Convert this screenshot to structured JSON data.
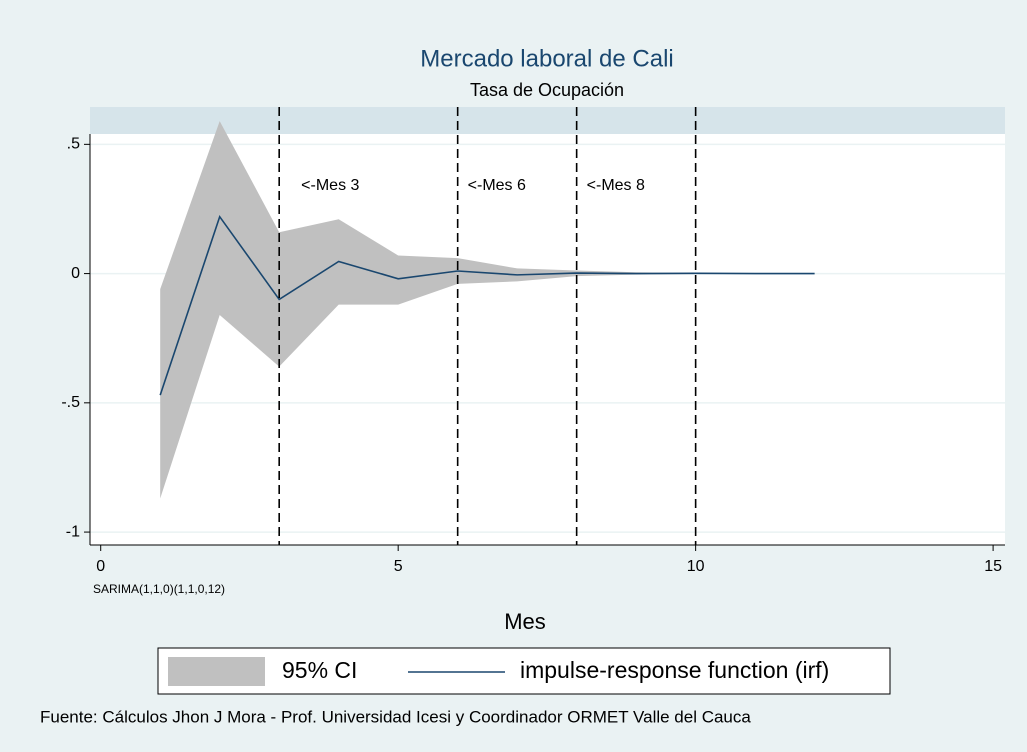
{
  "chart_data": {
    "type": "line",
    "title": "Mercado laboral de Cali",
    "subtitle": "Tasa de Ocupación",
    "note": "SARIMA(1,1,0)(1,1,0,12)",
    "x_label": "Mes",
    "caption": "Fuente: Cálculos Jhon J Mora - Prof. Universidad Icesi y Coordinador ORMET Valle del Cauca",
    "x": [
      1,
      2,
      3,
      4,
      5,
      6,
      7,
      8,
      9,
      10,
      11,
      12
    ],
    "series": [
      {
        "name": "95% CI",
        "color": "#c0c0c0",
        "upper": [
          -0.06,
          0.59,
          0.16,
          0.21,
          0.07,
          0.06,
          0.02,
          0.012,
          0.005,
          0.002,
          0.001,
          0
        ],
        "lower": [
          -0.87,
          -0.16,
          -0.36,
          -0.12,
          -0.12,
          -0.04,
          -0.03,
          -0.01,
          -0.004,
          -0.002,
          -0.001,
          0
        ]
      },
      {
        "name": "impulse-response function (irf)",
        "color": "#1a476f",
        "values": [
          -0.47,
          0.22,
          -0.1,
          0.047,
          -0.02,
          0.01,
          -0.005,
          0.002,
          0,
          0.001,
          0,
          0
        ]
      }
    ],
    "vlines": [
      3,
      6,
      8,
      10
    ],
    "annotations": [
      "<-Mes 3",
      "<-Mes 6",
      "<-Mes 8"
    ],
    "xlim": [
      -0.18,
      15.2
    ],
    "ylim": [
      -1.05,
      0.54
    ],
    "xticks": [
      0,
      5,
      10,
      15
    ],
    "yticks": [
      {
        "value": 0.5,
        "label": ".5"
      },
      0,
      {
        "value": -0.5,
        "label": "-.5"
      },
      -1
    ],
    "grid": true
  }
}
